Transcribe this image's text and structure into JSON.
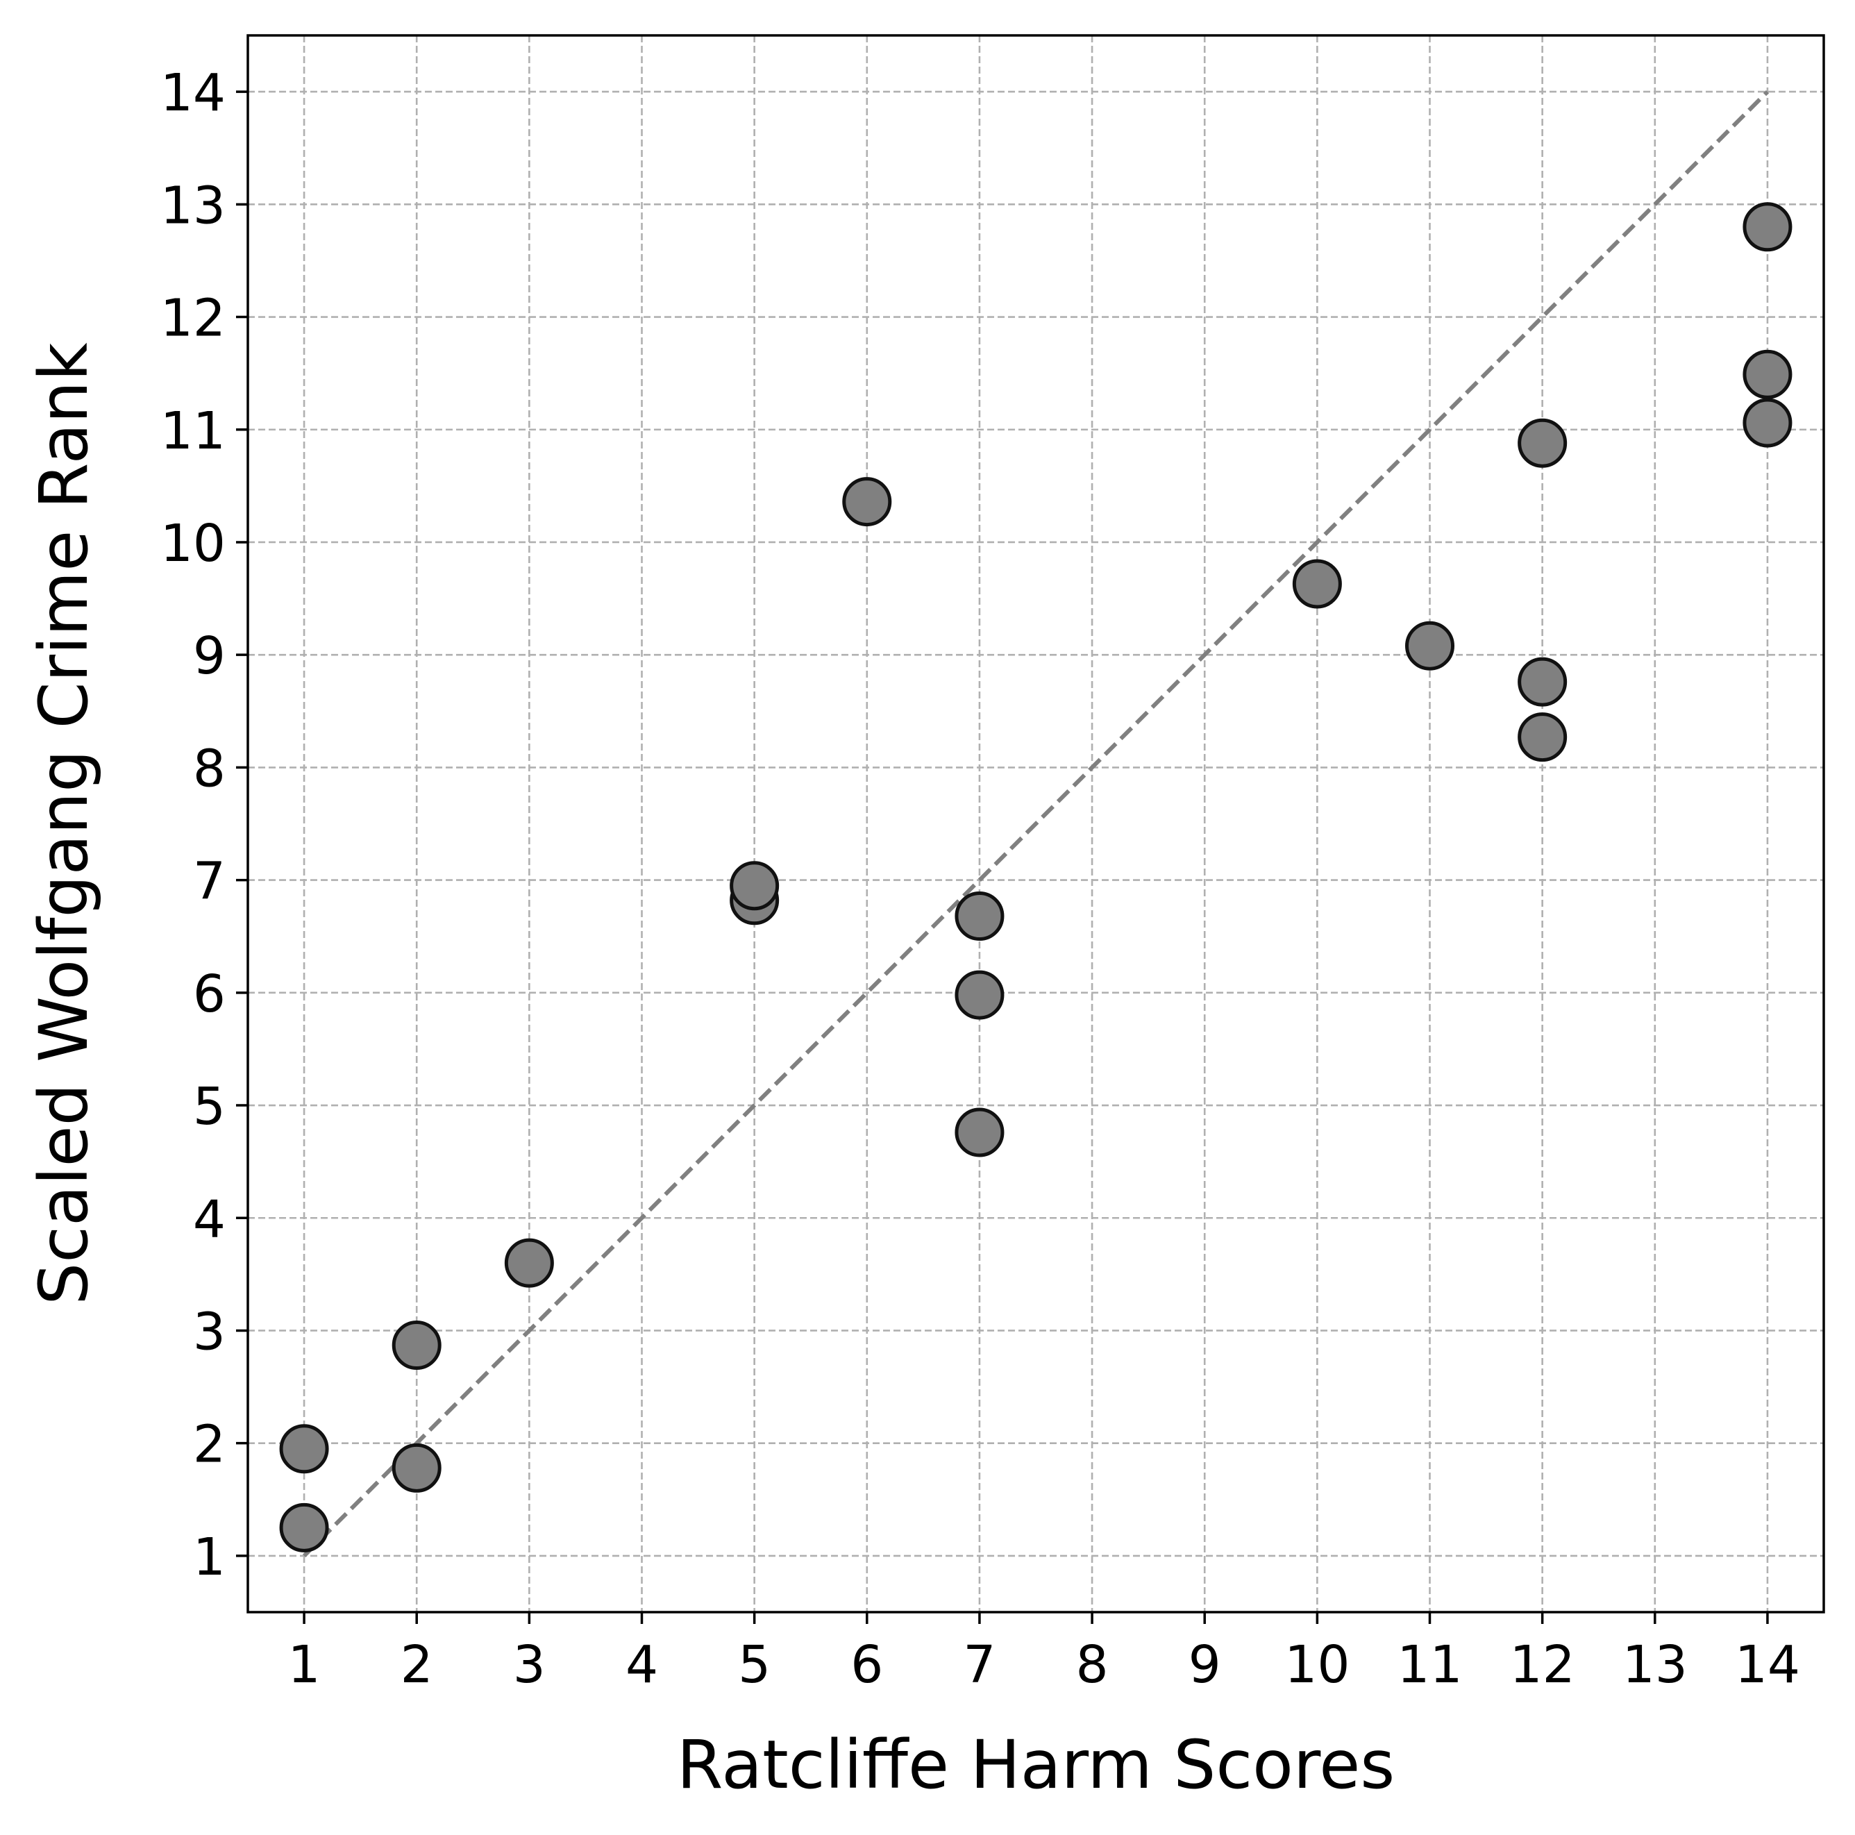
{
  "chart_data": {
    "type": "scatter",
    "title": "",
    "xlabel": "Ratcliffe Harm Scores",
    "ylabel": "Scaled Wolfgang Crime Rank",
    "xlim": [
      0.5,
      14.5
    ],
    "ylim": [
      0.5,
      14.5
    ],
    "xticks": [
      1,
      2,
      3,
      4,
      5,
      6,
      7,
      8,
      9,
      10,
      11,
      12,
      13,
      14
    ],
    "yticks": [
      1,
      2,
      3,
      4,
      5,
      6,
      7,
      8,
      9,
      10,
      11,
      12,
      13,
      14
    ],
    "grid": true,
    "legend": "none",
    "reference_line": {
      "x": [
        1,
        14
      ],
      "y": [
        1,
        14
      ],
      "style": "dashed",
      "color": "#808080"
    },
    "marker_color": "#808080",
    "marker_edge": "#111111",
    "points": [
      {
        "x": 1,
        "y": 1.95
      },
      {
        "x": 1,
        "y": 1.25
      },
      {
        "x": 2,
        "y": 2.87
      },
      {
        "x": 2,
        "y": 1.78
      },
      {
        "x": 3,
        "y": 3.6
      },
      {
        "x": 5,
        "y": 6.82
      },
      {
        "x": 5,
        "y": 6.95
      },
      {
        "x": 6,
        "y": 10.36
      },
      {
        "x": 7,
        "y": 6.68
      },
      {
        "x": 7,
        "y": 5.98
      },
      {
        "x": 7,
        "y": 4.76
      },
      {
        "x": 10,
        "y": 9.63
      },
      {
        "x": 11,
        "y": 9.08
      },
      {
        "x": 12,
        "y": 10.88
      },
      {
        "x": 12,
        "y": 8.76
      },
      {
        "x": 12,
        "y": 8.27
      },
      {
        "x": 14,
        "y": 12.8
      },
      {
        "x": 14,
        "y": 11.49
      },
      {
        "x": 14,
        "y": 11.06
      }
    ]
  }
}
